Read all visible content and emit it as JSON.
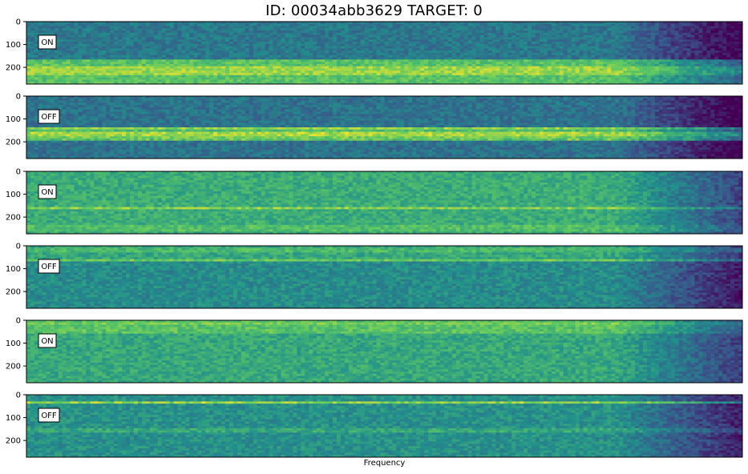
{
  "figure": {
    "title": "ID: 00034abb3629  TARGET: 0",
    "xlabel": "Frequency"
  },
  "chart_data": {
    "type": "heatmap",
    "title": "ID: 00034abb3629  TARGET: 0",
    "xlabel": "Frequency",
    "ylabel": "",
    "colormap": "viridis",
    "colors": {
      "low": "#440154",
      "mid": "#21918c",
      "high": "#fde725"
    },
    "y_ticks": [
      "0",
      "100",
      "200"
    ],
    "y_tick_values": [
      0,
      100,
      200
    ],
    "ylim": [
      0,
      273
    ],
    "x_ticks": [],
    "panels": [
      {
        "label": "ON",
        "base_level": 0.4,
        "right_fade": true,
        "bands": [
          {
            "y_start": 170,
            "y_end": 273,
            "intensity": 0.72
          },
          {
            "y_start": 195,
            "y_end": 230,
            "intensity": 0.85
          }
        ],
        "lines": []
      },
      {
        "label": "OFF",
        "base_level": 0.38,
        "right_fade": true,
        "bands": [
          {
            "y_start": 135,
            "y_end": 190,
            "intensity": 0.68
          }
        ],
        "lines": [
          {
            "y": 140,
            "intensity": 0.85
          },
          {
            "y": 165,
            "intensity": 0.9
          },
          {
            "y": 185,
            "intensity": 0.8
          }
        ]
      },
      {
        "label": "ON",
        "base_level": 0.62,
        "right_fade": true,
        "bands": [
          {
            "y_start": 230,
            "y_end": 260,
            "intensity": 0.7
          }
        ],
        "lines": [
          {
            "y": 160,
            "intensity": 0.85
          }
        ]
      },
      {
        "label": "OFF",
        "base_level": 0.48,
        "right_fade": true,
        "bands": [
          {
            "y_start": 0,
            "y_end": 70,
            "intensity": 0.6
          }
        ],
        "lines": [
          {
            "y": 20,
            "intensity": 0.7
          },
          {
            "y": 65,
            "intensity": 0.78
          }
        ]
      },
      {
        "label": "ON",
        "base_level": 0.6,
        "right_fade": true,
        "bands": [
          {
            "y_start": 0,
            "y_end": 60,
            "intensity": 0.72
          }
        ],
        "lines": [
          {
            "y": 15,
            "intensity": 0.8
          },
          {
            "y": 55,
            "intensity": 0.7
          }
        ]
      },
      {
        "label": "OFF",
        "base_level": 0.5,
        "right_fade": true,
        "bands": [],
        "lines": [
          {
            "y": 35,
            "intensity": 0.9
          },
          {
            "y": 155,
            "intensity": 0.62
          }
        ]
      }
    ]
  }
}
